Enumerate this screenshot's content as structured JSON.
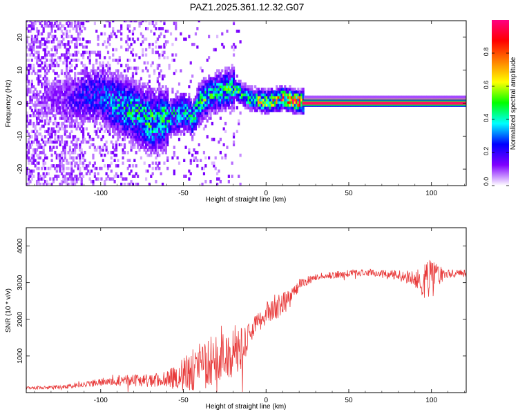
{
  "title": "PAZ1.2025.361.12.32.G07",
  "chart_data": [
    {
      "type": "heatmap",
      "panel": "spectrogram",
      "xlabel": "Height of straight line (km)",
      "ylabel": "Frequency (Hz)",
      "xlim": [
        -145,
        121
      ],
      "ylim": [
        -25,
        25
      ],
      "xticks": [
        -100,
        -50,
        0,
        50,
        100
      ],
      "yticks": [
        -20,
        -10,
        0,
        10,
        20
      ],
      "grid": false,
      "colorbar": {
        "label": "Normalized spectral amplitude",
        "range": [
          0,
          1
        ],
        "ticks": [
          "0.0",
          "0.2",
          "0.4",
          "0.6",
          "0.8"
        ],
        "colormap": [
          "#ffffff",
          "#8000ff",
          "#0000ff",
          "#00ffff",
          "#00ff00",
          "#ffff00",
          "#ff8000",
          "#ff0000",
          "#ff0080"
        ]
      },
      "ridge": {
        "x": [
          -145,
          -120,
          -110,
          -100,
          -90,
          -80,
          -70,
          -60,
          -50,
          -45,
          -40,
          -30,
          -20,
          -10,
          0,
          10,
          20,
          25,
          121
        ],
        "frequency": [
          2,
          0,
          2,
          2,
          -1,
          -3,
          -6,
          -5,
          -3,
          -5,
          0,
          3,
          4,
          1,
          0,
          1,
          0,
          0,
          0
        ],
        "peak_amplitude": [
          0.05,
          0.15,
          0.25,
          0.3,
          0.4,
          0.45,
          0.5,
          0.45,
          0.4,
          0.45,
          0.5,
          0.45,
          0.5,
          0.55,
          0.7,
          0.8,
          0.9,
          0.95,
          1.0
        ]
      }
    },
    {
      "type": "line",
      "panel": "snr",
      "xlabel": "Height of straight line (km)",
      "ylabel": "SNR (10 * v/v)",
      "xlim": [
        -145,
        121
      ],
      "ylim": [
        0,
        4500
      ],
      "xticks": [
        -100,
        -50,
        0,
        50,
        100
      ],
      "yticks": [
        1000,
        2000,
        3000,
        4000
      ],
      "grid": false,
      "color": "#e83a3a",
      "series": [
        {
          "name": "SNR",
          "x": [
            -145,
            -130,
            -120,
            -110,
            -100,
            -90,
            -80,
            -70,
            -60,
            -50,
            -45,
            -40,
            -35,
            -30,
            -25,
            -20,
            -15,
            -12,
            -10,
            -5,
            0,
            5,
            10,
            15,
            20,
            25,
            30,
            40,
            50,
            60,
            70,
            80,
            90,
            95,
            100,
            105,
            110,
            121
          ],
          "values": [
            130,
            140,
            170,
            220,
            280,
            330,
            330,
            330,
            380,
            500,
            600,
            700,
            820,
            900,
            1000,
            1050,
            1150,
            1400,
            1600,
            1900,
            2150,
            2350,
            2400,
            2600,
            2950,
            3050,
            3150,
            3200,
            3250,
            3300,
            3250,
            3200,
            3150,
            3050,
            3100,
            3200,
            3250,
            3250
          ],
          "noise": [
            40,
            50,
            60,
            80,
            110,
            140,
            160,
            180,
            220,
            450,
            550,
            650,
            700,
            700,
            650,
            700,
            650,
            400,
            300,
            300,
            300,
            350,
            350,
            250,
            150,
            130,
            100,
            100,
            100,
            110,
            120,
            150,
            250,
            500,
            600,
            250,
            120,
            100
          ]
        }
      ]
    }
  ]
}
